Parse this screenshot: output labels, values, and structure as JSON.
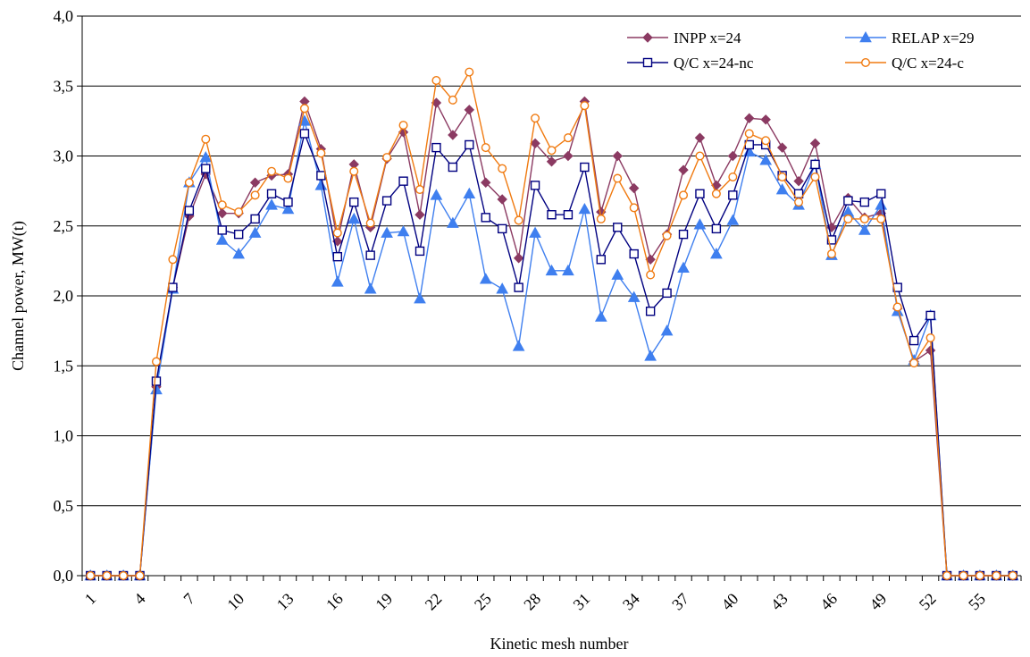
{
  "chart_data": {
    "type": "line",
    "title": "",
    "xlabel": "Kinetic mesh number",
    "ylabel": "Channel power, MW(t)",
    "ylim": [
      0,
      4
    ],
    "xlim": [
      1,
      57
    ],
    "grid": "horizontal",
    "legend_position": "top-right",
    "y_ticks": [
      "0,0",
      "0,5",
      "1,0",
      "1,5",
      "2,0",
      "2,5",
      "3,0",
      "3,5",
      "4,0"
    ],
    "x_ticks": [
      "1",
      "4",
      "7",
      "10",
      "13",
      "16",
      "19",
      "22",
      "25",
      "28",
      "31",
      "34",
      "37",
      "40",
      "43",
      "46",
      "49",
      "52",
      "55"
    ],
    "x": [
      1,
      2,
      3,
      4,
      5,
      6,
      7,
      8,
      9,
      10,
      11,
      12,
      13,
      14,
      15,
      16,
      17,
      18,
      19,
      20,
      21,
      22,
      23,
      24,
      25,
      26,
      27,
      28,
      29,
      30,
      31,
      32,
      33,
      34,
      35,
      36,
      37,
      38,
      39,
      40,
      41,
      42,
      43,
      44,
      45,
      46,
      47,
      48,
      49,
      50,
      51,
      52,
      53,
      54,
      55,
      56,
      57
    ],
    "series": [
      {
        "name": "INPP x=24",
        "color": "#8B3A62",
        "marker": "diamond",
        "values": [
          0,
          0,
          0,
          0,
          1.35,
          2.06,
          2.57,
          2.87,
          2.59,
          2.59,
          2.81,
          2.86,
          2.87,
          3.39,
          3.05,
          2.39,
          2.94,
          2.49,
          2.98,
          3.17,
          2.58,
          3.38,
          3.15,
          3.33,
          2.81,
          2.69,
          2.27,
          3.09,
          2.96,
          3.0,
          3.39,
          2.6,
          3.0,
          2.77,
          2.26,
          2.44,
          2.9,
          3.13,
          2.79,
          3.0,
          3.27,
          3.26,
          3.06,
          2.82,
          3.09,
          2.49,
          2.7,
          2.56,
          2.59,
          1.91,
          1.53,
          1.61,
          0,
          0,
          0,
          0,
          0
        ]
      },
      {
        "name": "RELAP x=29",
        "color": "#3F7FEF",
        "marker": "triangle",
        "values": [
          0,
          0,
          0,
          0,
          1.33,
          2.05,
          2.81,
          2.99,
          2.4,
          2.3,
          2.45,
          2.65,
          2.62,
          3.25,
          2.79,
          2.1,
          2.55,
          2.05,
          2.45,
          2.46,
          1.98,
          2.72,
          2.52,
          2.73,
          2.12,
          2.05,
          1.64,
          2.45,
          2.18,
          2.18,
          2.62,
          1.85,
          2.15,
          1.99,
          1.57,
          1.75,
          2.2,
          2.51,
          2.3,
          2.54,
          3.03,
          2.97,
          2.76,
          2.65,
          2.94,
          2.29,
          2.6,
          2.47,
          2.65,
          1.89,
          1.54,
          1.86,
          0,
          0,
          0,
          0,
          0
        ]
      },
      {
        "name": "Q/C x=24-nc",
        "color": "#000080",
        "marker": "square",
        "values": [
          0,
          0,
          0,
          0,
          1.39,
          2.06,
          2.61,
          2.91,
          2.47,
          2.44,
          2.55,
          2.73,
          2.67,
          3.16,
          2.86,
          2.28,
          2.67,
          2.29,
          2.68,
          2.82,
          2.32,
          3.06,
          2.92,
          3.08,
          2.56,
          2.48,
          2.06,
          2.79,
          2.58,
          2.58,
          2.92,
          2.26,
          2.49,
          2.3,
          1.89,
          2.02,
          2.44,
          2.73,
          2.48,
          2.72,
          3.08,
          3.08,
          2.86,
          2.73,
          2.94,
          2.4,
          2.68,
          2.67,
          2.73,
          2.06,
          1.68,
          1.86,
          0,
          0,
          0,
          0,
          0
        ]
      },
      {
        "name": "Q/C x=24-c",
        "color": "#F07A10",
        "marker": "circle",
        "values": [
          0,
          0,
          0,
          0,
          1.53,
          2.26,
          2.81,
          3.12,
          2.65,
          2.6,
          2.72,
          2.89,
          2.84,
          3.34,
          3.02,
          2.45,
          2.89,
          2.52,
          2.99,
          3.22,
          2.76,
          3.54,
          3.4,
          3.6,
          3.06,
          2.91,
          2.54,
          3.27,
          3.04,
          3.13,
          3.36,
          2.55,
          2.84,
          2.63,
          2.15,
          2.43,
          2.72,
          3.0,
          2.73,
          2.85,
          3.16,
          3.11,
          2.85,
          2.67,
          2.85,
          2.3,
          2.55,
          2.55,
          2.55,
          1.92,
          1.52,
          1.7,
          0,
          0,
          0,
          0,
          0
        ]
      }
    ]
  }
}
